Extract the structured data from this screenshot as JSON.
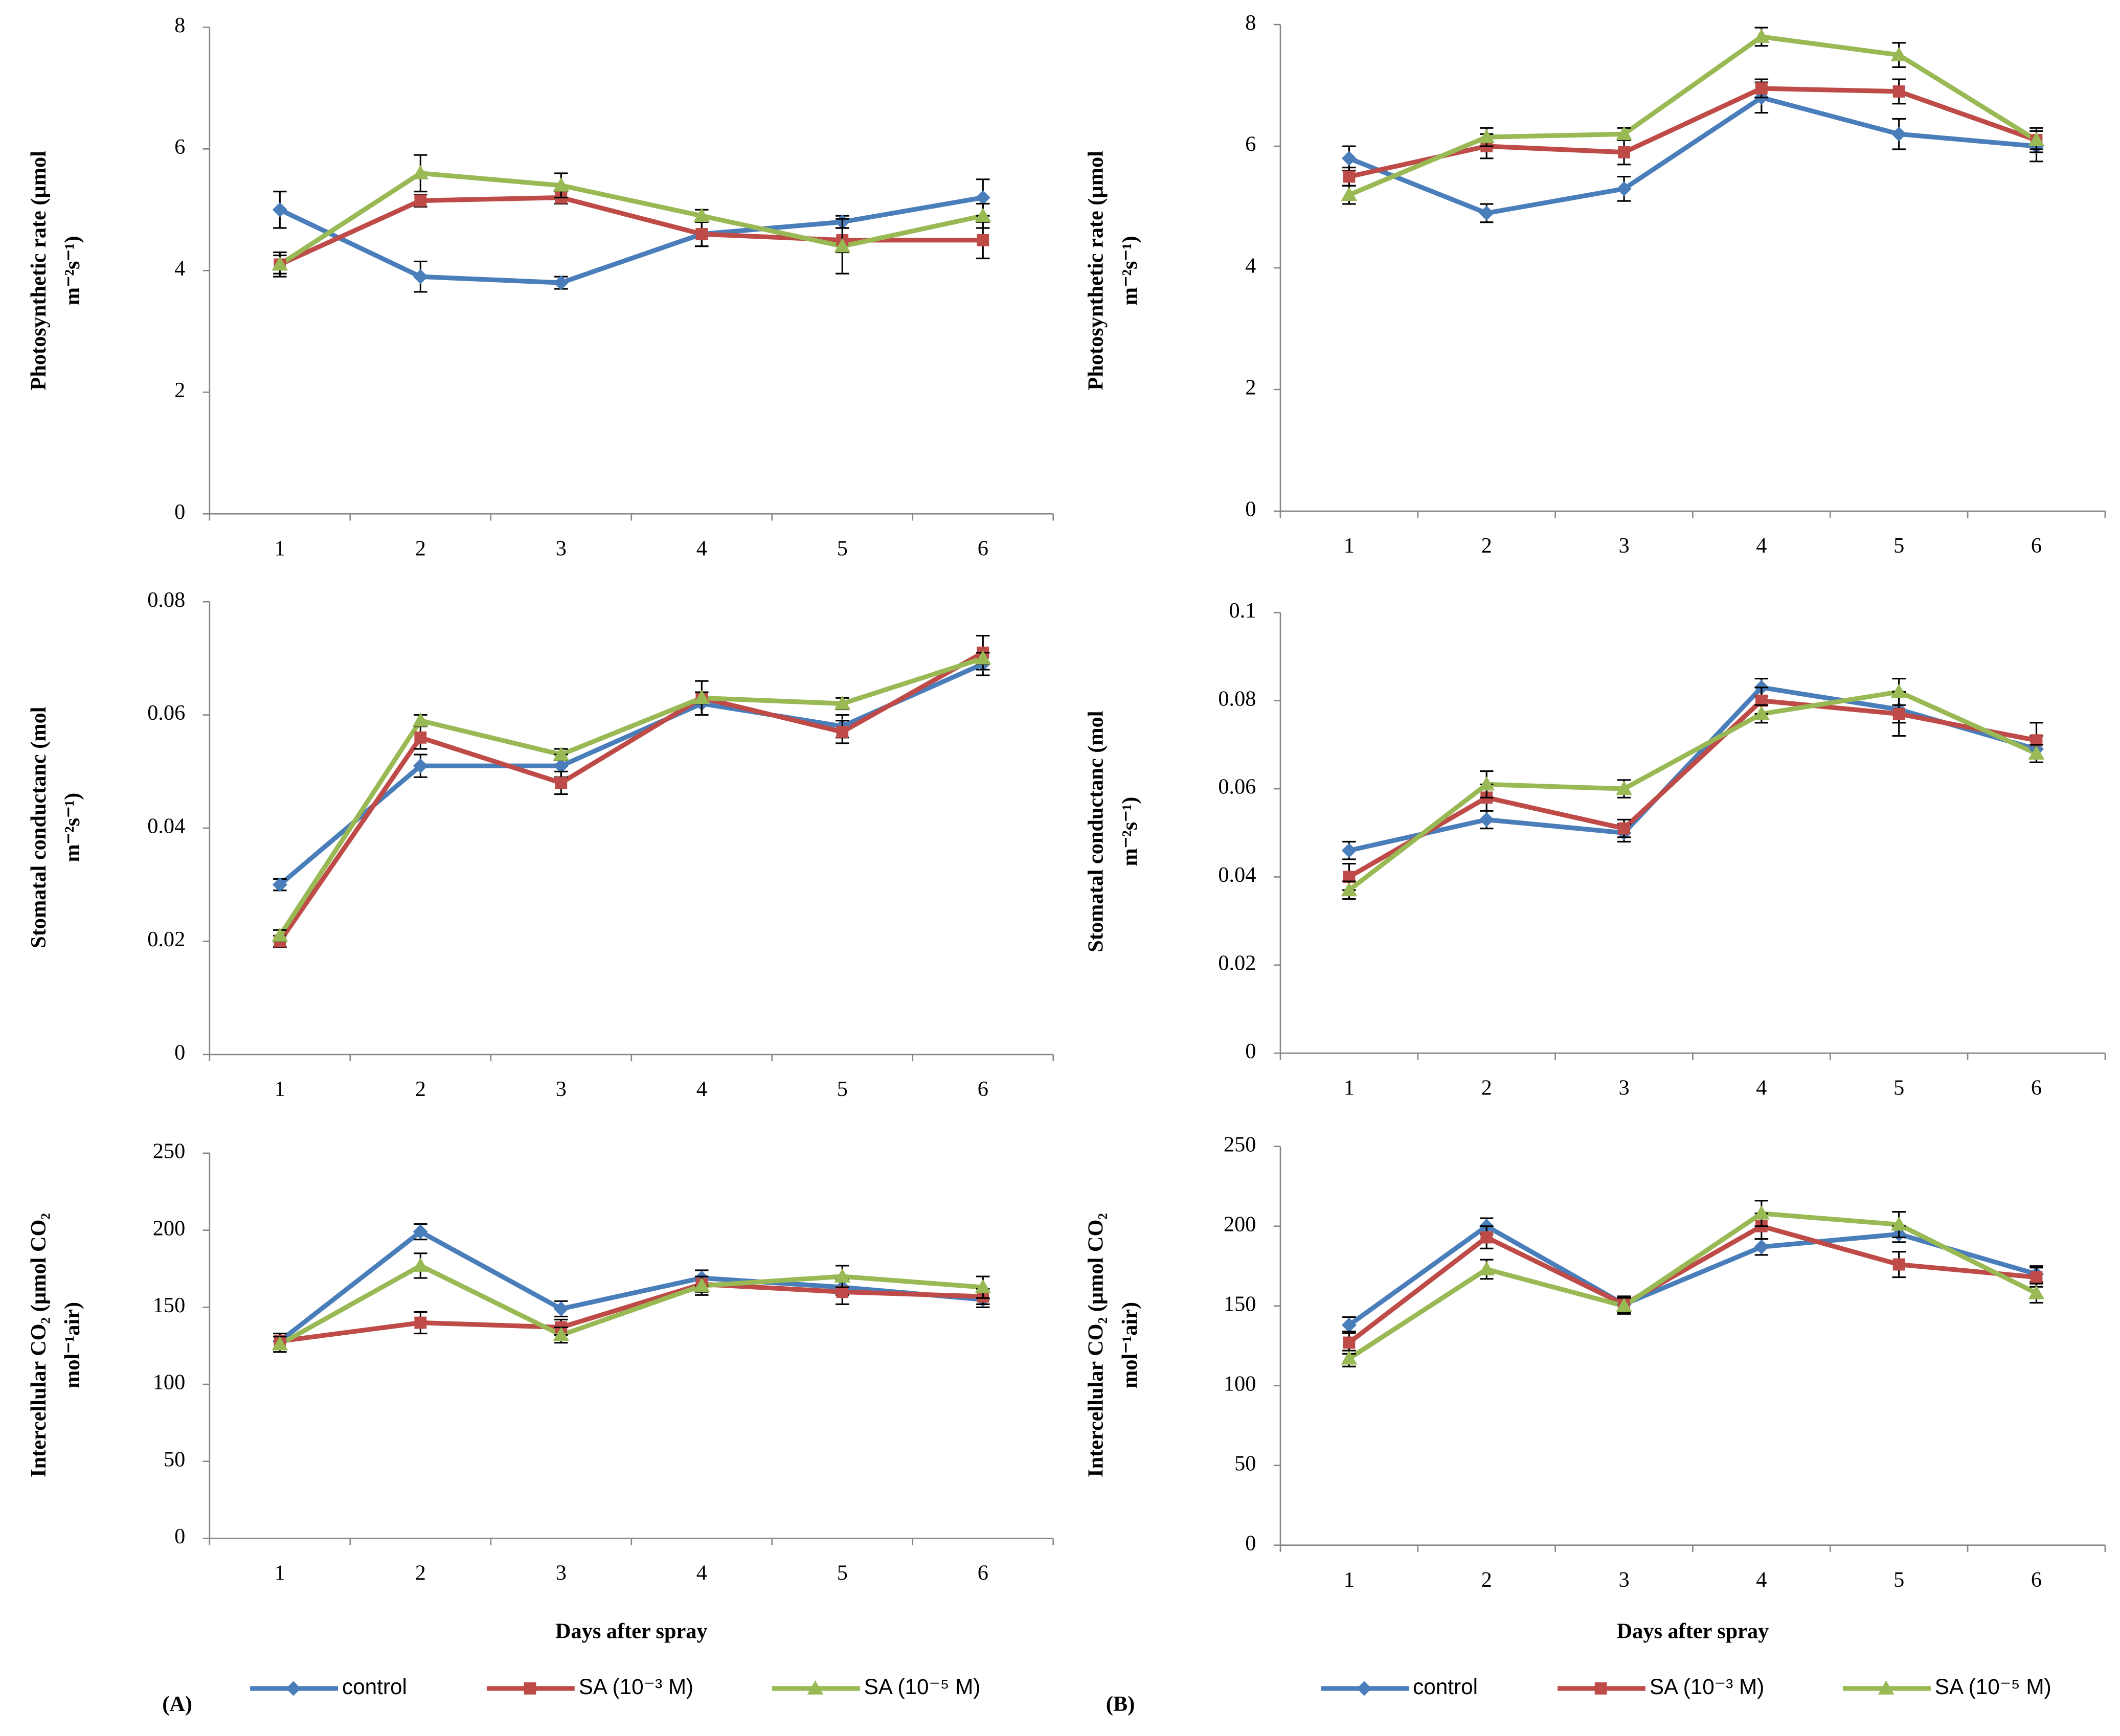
{
  "chart_data": [
    {
      "type": "line",
      "ylabel": [
        "Photosynthetic rate (µmol",
        "m⁻²s⁻¹)"
      ],
      "categories": [
        "1",
        "2",
        "3",
        "4",
        "5",
        "6"
      ],
      "ylim": [
        0,
        8
      ],
      "yticks": [
        0,
        2,
        4,
        6,
        8
      ],
      "series": [
        {
          "color": "#4a7ebb",
          "marker": "diamond",
          "values": [
            5.0,
            3.9,
            3.8,
            4.6,
            4.8,
            5.2
          ],
          "errors": [
            0.3,
            0.25,
            0.1,
            0.2,
            0.1,
            0.3
          ]
        },
        {
          "color": "#be4b48",
          "marker": "square",
          "values": [
            4.1,
            5.15,
            5.2,
            4.6,
            4.5,
            4.5
          ],
          "errors": [
            0.2,
            0.1,
            0.1,
            0.2,
            0.2,
            0.3
          ]
        },
        {
          "color": "#98b954",
          "marker": "triangle",
          "values": [
            4.1,
            5.6,
            5.4,
            4.9,
            4.4,
            4.9
          ],
          "errors": [
            0.15,
            0.3,
            0.2,
            0.1,
            0.45,
            0.2
          ]
        }
      ]
    },
    {
      "type": "line",
      "ylabel": [
        "Photosynthetic rate (µmol",
        "m⁻²s⁻¹)"
      ],
      "categories": [
        "1",
        "2",
        "3",
        "4",
        "5",
        "6"
      ],
      "ylim": [
        0,
        8
      ],
      "yticks": [
        0,
        2,
        4,
        6,
        8
      ],
      "series": [
        {
          "color": "#4a7ebb",
          "marker": "diamond",
          "values": [
            5.8,
            4.9,
            5.3,
            6.8,
            6.2,
            6.0
          ],
          "errors": [
            0.2,
            0.15,
            0.2,
            0.25,
            0.25,
            0.25
          ]
        },
        {
          "color": "#be4b48",
          "marker": "square",
          "values": [
            5.5,
            6.0,
            5.9,
            6.95,
            6.9,
            6.1
          ],
          "errors": [
            0.15,
            0.2,
            0.2,
            0.15,
            0.2,
            0.2
          ]
        },
        {
          "color": "#98b954",
          "marker": "triangle",
          "values": [
            5.2,
            6.15,
            6.2,
            7.8,
            7.5,
            6.1
          ],
          "errors": [
            0.15,
            0.15,
            0.1,
            0.15,
            0.2,
            0.15
          ]
        }
      ]
    },
    {
      "type": "line",
      "ylabel": [
        "Stomatal conductanc (mol",
        "m⁻²s⁻¹)"
      ],
      "categories": [
        "1",
        "2",
        "3",
        "4",
        "5",
        "6"
      ],
      "ylim": [
        0,
        0.08
      ],
      "yticks": [
        0,
        0.02,
        0.04,
        0.06,
        0.08
      ],
      "series": [
        {
          "color": "#4a7ebb",
          "marker": "diamond",
          "values": [
            0.03,
            0.051,
            0.051,
            0.062,
            0.058,
            0.069
          ],
          "errors": [
            0.001,
            0.002,
            0.002,
            0.002,
            0.002,
            0.002
          ]
        },
        {
          "color": "#be4b48",
          "marker": "square",
          "values": [
            0.02,
            0.056,
            0.048,
            0.063,
            0.057,
            0.071
          ],
          "errors": [
            0.001,
            0.002,
            0.002,
            0.003,
            0.002,
            0.003
          ]
        },
        {
          "color": "#98b954",
          "marker": "triangle",
          "values": [
            0.021,
            0.059,
            0.053,
            0.063,
            0.062,
            0.07
          ],
          "errors": [
            0.001,
            0.001,
            0.001,
            0.001,
            0.001,
            0.001
          ]
        }
      ]
    },
    {
      "type": "line",
      "ylabel": [
        "Stomatal conductanc (mol",
        "m⁻²s⁻¹)"
      ],
      "categories": [
        "1",
        "2",
        "3",
        "4",
        "5",
        "6"
      ],
      "ylim": [
        0,
        0.1
      ],
      "yticks": [
        0,
        0.02,
        0.04,
        0.06,
        0.08,
        0.1
      ],
      "series": [
        {
          "color": "#4a7ebb",
          "marker": "diamond",
          "values": [
            0.046,
            0.053,
            0.05,
            0.083,
            0.078,
            0.069
          ],
          "errors": [
            0.002,
            0.002,
            0.002,
            0.002,
            0.003,
            0.003
          ]
        },
        {
          "color": "#be4b48",
          "marker": "square",
          "values": [
            0.04,
            0.058,
            0.051,
            0.08,
            0.077,
            0.071
          ],
          "errors": [
            0.003,
            0.003,
            0.002,
            0.003,
            0.005,
            0.004
          ]
        },
        {
          "color": "#98b954",
          "marker": "triangle",
          "values": [
            0.037,
            0.061,
            0.06,
            0.077,
            0.082,
            0.068
          ],
          "errors": [
            0.002,
            0.003,
            0.002,
            0.002,
            0.003,
            0.002
          ]
        }
      ]
    },
    {
      "type": "line",
      "ylabel": [
        "Intercellular CO₂ (µmol CO₂",
        "mol⁻¹air)"
      ],
      "xlabel": "Days after spray",
      "panel_label": "(A)",
      "legend": "bottom",
      "categories": [
        "1",
        "2",
        "3",
        "4",
        "5",
        "6"
      ],
      "ylim": [
        0,
        250
      ],
      "yticks": [
        0,
        50,
        100,
        150,
        200,
        250
      ],
      "series": [
        {
          "name": "control",
          "color": "#4a7ebb",
          "marker": "diamond",
          "values": [
            128,
            199,
            149,
            169,
            163,
            155
          ],
          "errors": [
            5,
            5,
            5,
            5,
            5,
            5
          ]
        },
        {
          "name": "SA (10⁻³ M)",
          "color": "#be4b48",
          "marker": "square",
          "values": [
            128,
            140,
            137,
            165,
            160,
            157
          ],
          "errors": [
            5,
            7,
            5,
            5,
            8,
            5
          ]
        },
        {
          "name": "SA (10⁻⁵ M)",
          "color": "#98b954",
          "marker": "triangle",
          "values": [
            126,
            177,
            132,
            164,
            170,
            163
          ],
          "errors": [
            5,
            8,
            5,
            6,
            7,
            7
          ]
        }
      ]
    },
    {
      "type": "line",
      "ylabel": [
        "Intercellular CO₂ (µmol CO₂",
        "mol⁻¹air)"
      ],
      "xlabel": "Days after spray",
      "panel_label": "(B)",
      "legend": "bottom",
      "categories": [
        "1",
        "2",
        "3",
        "4",
        "5",
        "6"
      ],
      "ylim": [
        0,
        250
      ],
      "yticks": [
        0,
        50,
        100,
        150,
        200,
        250
      ],
      "series": [
        {
          "name": "control",
          "color": "#4a7ebb",
          "marker": "diamond",
          "values": [
            138,
            200,
            151,
            187,
            195,
            170
          ],
          "errors": [
            5,
            5,
            5,
            5,
            5,
            5
          ]
        },
        {
          "name": "SA (10⁻³ M)",
          "color": "#be4b48",
          "marker": "square",
          "values": [
            127,
            193,
            151,
            200,
            176,
            168
          ],
          "errors": [
            7,
            7,
            5,
            8,
            8,
            6
          ]
        },
        {
          "name": "SA (10⁻⁵ M)",
          "color": "#98b954",
          "marker": "triangle",
          "values": [
            117,
            173,
            150,
            208,
            201,
            158
          ],
          "errors": [
            5,
            6,
            5,
            8,
            8,
            6
          ]
        }
      ]
    }
  ]
}
